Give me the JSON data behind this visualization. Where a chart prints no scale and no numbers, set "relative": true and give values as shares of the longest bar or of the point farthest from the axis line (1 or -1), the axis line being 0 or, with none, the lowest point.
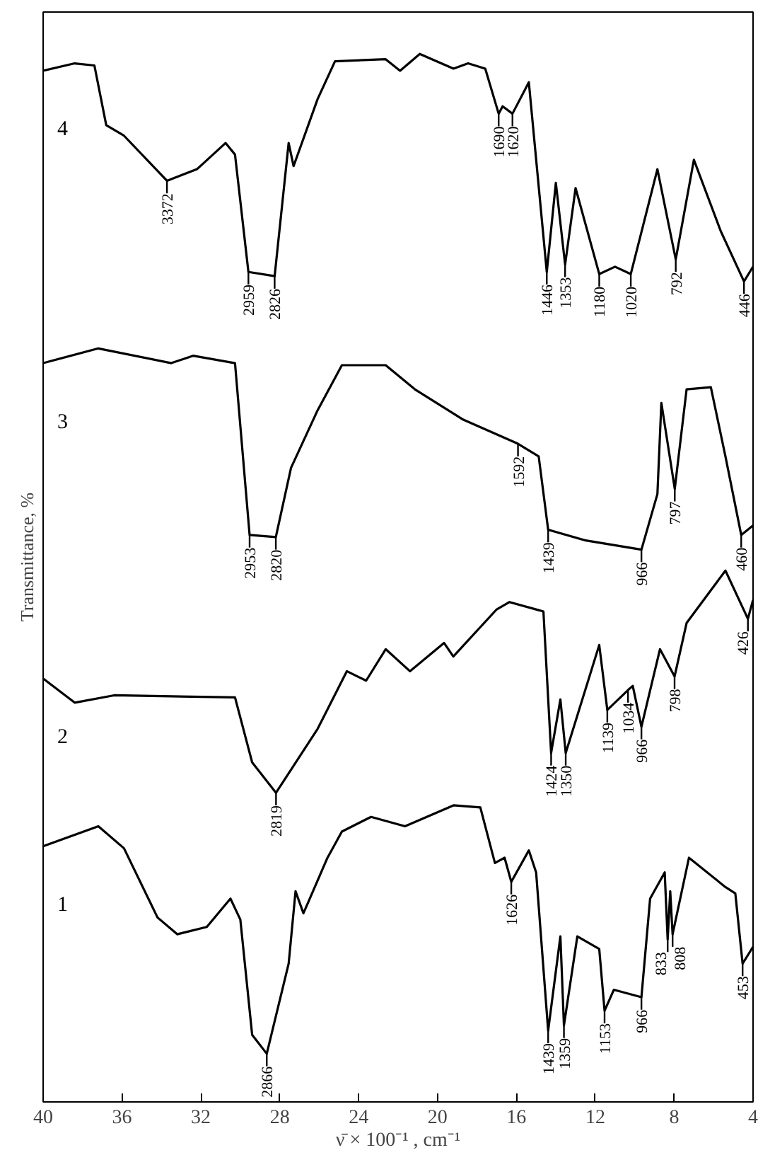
{
  "chart_data": {
    "type": "line",
    "relative": true,
    "ylabel": "Transmittance, %",
    "xlabel": "ν̄ × 100⁻¹ , cm⁻¹",
    "xlim": [
      40,
      4
    ],
    "xticks": [
      40,
      36,
      32,
      28,
      24,
      20,
      16,
      12,
      8,
      4
    ],
    "tick_labels": "x",
    "grid": false,
    "legend": false,
    "series": [
      {
        "name": "4",
        "color": "#000000",
        "x": [
          40,
          38.4,
          37.4,
          36.8,
          35.9,
          33.72,
          32.2,
          30.75,
          30.27,
          29.59,
          28.26,
          27.55,
          27.3,
          26.08,
          25.2,
          22.63,
          21.9,
          20.9,
          19.19,
          18.45,
          17.58,
          16.9,
          16.7,
          16.2,
          15.37,
          14.46,
          14.0,
          13.53,
          13.0,
          11.8,
          11.0,
          10.2,
          8.85,
          7.92,
          7.0,
          5.64,
          4.46,
          4.0
        ],
        "values": [
          0.984,
          0.991,
          0.989,
          0.932,
          0.922,
          0.879,
          0.89,
          0.915,
          0.904,
          0.792,
          0.788,
          0.915,
          0.893,
          0.957,
          0.993,
          0.995,
          0.984,
          1.0,
          0.986,
          0.991,
          0.986,
          0.943,
          0.95,
          0.943,
          0.973,
          0.792,
          0.877,
          0.799,
          0.872,
          0.79,
          0.797,
          0.79,
          0.89,
          0.804,
          0.899,
          0.831,
          0.783,
          0.797
        ]
      },
      {
        "name": "3",
        "color": "#000000",
        "x": [
          40,
          37.2,
          33.5,
          32.4,
          30.27,
          29.53,
          28.2,
          27.43,
          26.08,
          24.85,
          22.63,
          21.15,
          18.69,
          15.92,
          14.87,
          14.39,
          12.54,
          9.66,
          8.85,
          8.65,
          7.97,
          7.37,
          6.14,
          5.4,
          4.6,
          4.0
        ],
        "values": [
          0.705,
          0.719,
          0.705,
          0.712,
          0.705,
          0.541,
          0.539,
          0.605,
          0.66,
          0.703,
          0.703,
          0.68,
          0.651,
          0.628,
          0.616,
          0.546,
          0.536,
          0.527,
          0.58,
          0.667,
          0.585,
          0.68,
          0.682,
          0.616,
          0.541,
          0.55
        ]
      },
      {
        "name": "2",
        "color": "#000000",
        "x": [
          40,
          38.4,
          36.4,
          30.27,
          29.4,
          28.19,
          26.08,
          24.6,
          23.62,
          22.63,
          21.4,
          19.67,
          19.2,
          17.0,
          16.35,
          14.63,
          14.24,
          13.77,
          13.5,
          11.8,
          11.39,
          10.34,
          10.1,
          9.66,
          8.72,
          7.98,
          7.37,
          5.4,
          4.26,
          4.0
        ],
        "values": [
          0.404,
          0.381,
          0.388,
          0.386,
          0.324,
          0.295,
          0.356,
          0.411,
          0.402,
          0.432,
          0.411,
          0.438,
          0.425,
          0.47,
          0.477,
          0.468,
          0.333,
          0.384,
          0.333,
          0.436,
          0.374,
          0.393,
          0.397,
          0.358,
          0.432,
          0.406,
          0.457,
          0.507,
          0.461,
          0.479
        ]
      },
      {
        "name": "1",
        "color": "#000000",
        "x": [
          40,
          37.2,
          35.9,
          34.2,
          33.2,
          31.7,
          30.5,
          30.0,
          29.4,
          28.66,
          27.55,
          27.2,
          26.8,
          25.58,
          24.85,
          23.37,
          21.65,
          19.19,
          17.83,
          17.09,
          16.6,
          16.26,
          15.37,
          15.0,
          14.39,
          13.77,
          13.59,
          12.91,
          11.8,
          11.53,
          11.06,
          9.66,
          9.22,
          8.48,
          8.33,
          8.2,
          8.08,
          7.25,
          5.4,
          4.9,
          4.53,
          4.0
        ],
        "values": [
          0.244,
          0.263,
          0.242,
          0.176,
          0.16,
          0.167,
          0.194,
          0.174,
          0.064,
          0.046,
          0.132,
          0.201,
          0.18,
          0.233,
          0.258,
          0.272,
          0.263,
          0.283,
          0.281,
          0.228,
          0.233,
          0.21,
          0.24,
          0.219,
          0.068,
          0.158,
          0.073,
          0.158,
          0.146,
          0.087,
          0.107,
          0.1,
          0.194,
          0.219,
          0.155,
          0.201,
          0.16,
          0.233,
          0.205,
          0.199,
          0.132,
          0.148
        ]
      }
    ],
    "annotations": [
      {
        "text": "3372",
        "x": 33.72,
        "y": 0.879
      },
      {
        "text": "2959",
        "x": 29.59,
        "y": 0.792
      },
      {
        "text": "2826",
        "x": 28.26,
        "y": 0.788
      },
      {
        "text": "1690",
        "x": 16.9,
        "y": 0.943
      },
      {
        "text": "1620",
        "x": 16.2,
        "y": 0.943
      },
      {
        "text": "1446",
        "x": 14.46,
        "y": 0.792
      },
      {
        "text": "1353",
        "x": 13.53,
        "y": 0.799
      },
      {
        "text": "1180",
        "x": 11.8,
        "y": 0.79
      },
      {
        "text": "1020",
        "x": 10.2,
        "y": 0.79
      },
      {
        "text": "792",
        "x": 7.92,
        "y": 0.804
      },
      {
        "text": "446",
        "x": 4.46,
        "y": 0.783
      },
      {
        "text": "2953",
        "x": 29.53,
        "y": 0.541
      },
      {
        "text": "2820",
        "x": 28.2,
        "y": 0.539
      },
      {
        "text": "1592",
        "x": 15.92,
        "y": 0.628
      },
      {
        "text": "1439",
        "x": 14.39,
        "y": 0.546
      },
      {
        "text": "966",
        "x": 9.66,
        "y": 0.527
      },
      {
        "text": "797",
        "x": 7.97,
        "y": 0.585
      },
      {
        "text": "460",
        "x": 4.6,
        "y": 0.541
      },
      {
        "text": "2819",
        "x": 28.19,
        "y": 0.295
      },
      {
        "text": "1424",
        "x": 14.24,
        "y": 0.333
      },
      {
        "text": "1350",
        "x": 13.5,
        "y": 0.333
      },
      {
        "text": "1139",
        "x": 11.39,
        "y": 0.374
      },
      {
        "text": "1034",
        "x": 10.34,
        "y": 0.393
      },
      {
        "text": "966",
        "x": 9.66,
        "y": 0.358
      },
      {
        "text": "798",
        "x": 7.98,
        "y": 0.406
      },
      {
        "text": "426",
        "x": 4.26,
        "y": 0.461
      },
      {
        "text": "2866",
        "x": 28.66,
        "y": 0.046
      },
      {
        "text": "1626",
        "x": 16.26,
        "y": 0.21
      },
      {
        "text": "1439",
        "x": 14.39,
        "y": 0.068
      },
      {
        "text": "1359",
        "x": 13.59,
        "y": 0.073
      },
      {
        "text": "1153",
        "x": 11.53,
        "y": 0.087
      },
      {
        "text": "966",
        "x": 9.66,
        "y": 0.1
      },
      {
        "text": "833",
        "x": 8.33,
        "y": 0.155
      },
      {
        "text": "808",
        "x": 8.08,
        "y": 0.16
      },
      {
        "text": "453",
        "x": 4.53,
        "y": 0.132
      }
    ]
  }
}
